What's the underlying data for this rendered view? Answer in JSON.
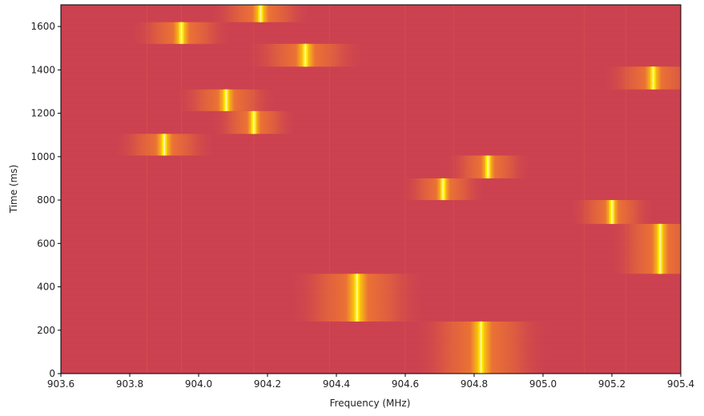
{
  "chart_data": {
    "type": "heatmap",
    "xlabel": "Frequency (MHz)",
    "ylabel": "Time (ms)",
    "xlim": [
      903.6,
      905.4
    ],
    "ylim": [
      0,
      1700
    ],
    "x_ticks": [
      903.6,
      903.8,
      904.0,
      904.2,
      904.4,
      904.6,
      904.8,
      905.0,
      905.2,
      905.4
    ],
    "x_tick_labels": [
      "903.6",
      "903.8",
      "904.0",
      "904.2",
      "904.4",
      "904.6",
      "904.8",
      "905.0",
      "905.2",
      "905.4"
    ],
    "y_ticks": [
      0,
      200,
      400,
      600,
      800,
      1000,
      1200,
      1400,
      1600
    ],
    "y_tick_labels": [
      "0",
      "200",
      "400",
      "600",
      "800",
      "1000",
      "1200",
      "1400",
      "1600"
    ],
    "grid": false,
    "colormap": "red-orange-yellow",
    "background_color": "#cd4250",
    "colors": {
      "low": "#cd4250",
      "mid": "#f07a30",
      "high": "#ffe600",
      "peak": "#fff7a0"
    },
    "signals": [
      {
        "center_mhz": 904.82,
        "t_start_ms": 0,
        "t_end_ms": 240,
        "bandwidth_mhz": 0.4
      },
      {
        "center_mhz": 904.46,
        "t_start_ms": 240,
        "t_end_ms": 460,
        "bandwidth_mhz": 0.4
      },
      {
        "center_mhz": 905.34,
        "t_start_ms": 460,
        "t_end_ms": 690,
        "bandwidth_mhz": 0.3
      },
      {
        "center_mhz": 905.2,
        "t_start_ms": 690,
        "t_end_ms": 800,
        "bandwidth_mhz": 0.25
      },
      {
        "center_mhz": 904.71,
        "t_start_ms": 800,
        "t_end_ms": 900,
        "bandwidth_mhz": 0.25
      },
      {
        "center_mhz": 904.84,
        "t_start_ms": 900,
        "t_end_ms": 1005,
        "bandwidth_mhz": 0.25
      },
      {
        "center_mhz": 903.9,
        "t_start_ms": 1005,
        "t_end_ms": 1105,
        "bandwidth_mhz": 0.3
      },
      {
        "center_mhz": 904.16,
        "t_start_ms": 1105,
        "t_end_ms": 1210,
        "bandwidth_mhz": 0.25
      },
      {
        "center_mhz": 904.08,
        "t_start_ms": 1210,
        "t_end_ms": 1310,
        "bandwidth_mhz": 0.3
      },
      {
        "center_mhz": 905.32,
        "t_start_ms": 1310,
        "t_end_ms": 1415,
        "bandwidth_mhz": 0.3
      },
      {
        "center_mhz": 904.31,
        "t_start_ms": 1415,
        "t_end_ms": 1520,
        "bandwidth_mhz": 0.35
      },
      {
        "center_mhz": 903.95,
        "t_start_ms": 1520,
        "t_end_ms": 1620,
        "bandwidth_mhz": 0.3
      },
      {
        "center_mhz": 904.18,
        "t_start_ms": 1620,
        "t_end_ms": 1700,
        "bandwidth_mhz": 0.3
      }
    ],
    "spurs_mhz": [
      903.85,
      903.95,
      904.16,
      904.38,
      904.6,
      904.74,
      905.12,
      905.24
    ]
  }
}
